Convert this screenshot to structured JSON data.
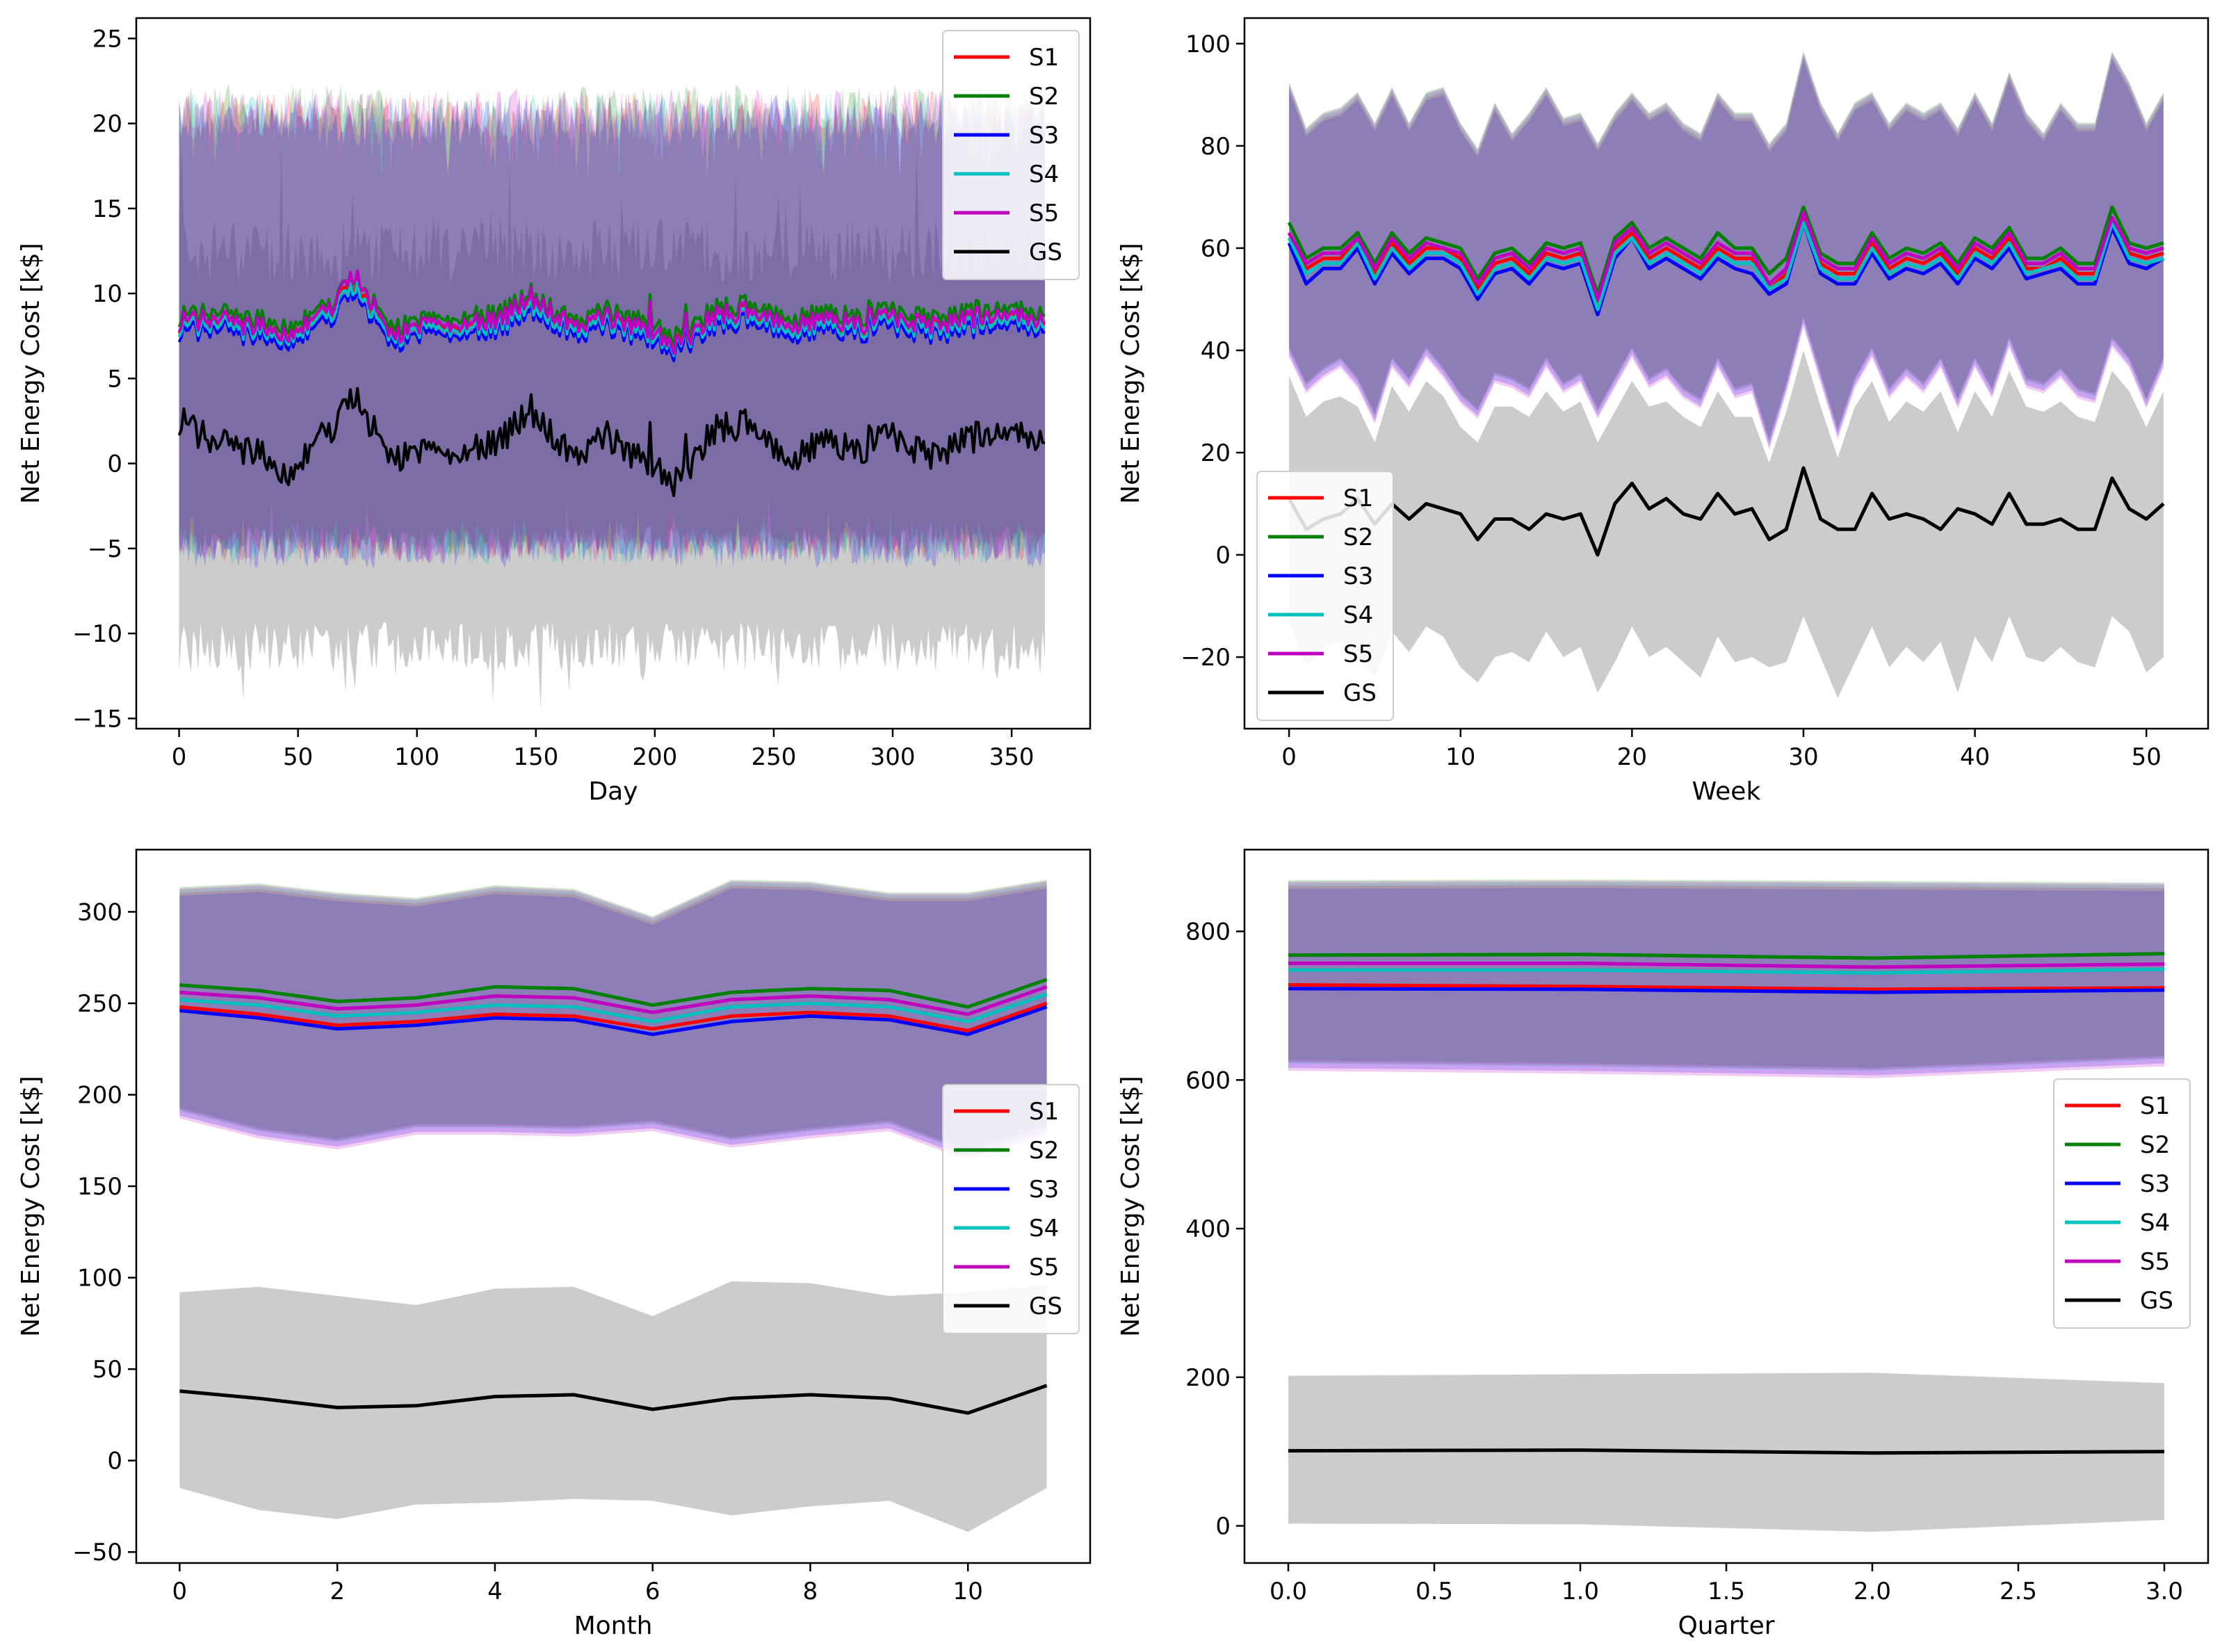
{
  "chart_data": [
    {
      "type": "line",
      "xlabel": "Day",
      "ylabel": "Net Energy Cost [k$]",
      "xlim": [
        -18,
        383
      ],
      "ylim": [
        -15.6,
        26.2
      ],
      "xticks": [
        0,
        50,
        100,
        150,
        200,
        250,
        300,
        350
      ],
      "yticks": [
        -15,
        -10,
        -5,
        0,
        5,
        10,
        15,
        20,
        25
      ],
      "legend": "top-right",
      "bands_summary": "Shaded min–max bands per scenario; S1–S5 roughly -5 to 21, GS roughly -11 to 13",
      "x": [
        0,
        15,
        30,
        45,
        60,
        74,
        90,
        105,
        120,
        135,
        148,
        165,
        180,
        195,
        210,
        225,
        240,
        255,
        270,
        285,
        300,
        315,
        330,
        345,
        364
      ],
      "series": [
        {
          "name": "S1",
          "color": "#ff0000",
          "values": [
            8.2,
            8.4,
            8.0,
            7.8,
            8.6,
            10.5,
            7.6,
            8.3,
            8.1,
            8.4,
            9.6,
            8.0,
            8.5,
            7.9,
            7.0,
            8.6,
            8.9,
            8.0,
            8.3,
            8.1,
            8.6,
            7.9,
            8.4,
            8.7,
            8.2
          ],
          "band": [
            -4.8,
            20.5
          ]
        },
        {
          "name": "S2",
          "color": "#008000",
          "values": [
            8.6,
            8.9,
            8.5,
            8.2,
            9.0,
            10.9,
            8.0,
            8.7,
            8.6,
            8.9,
            10.0,
            8.4,
            9.0,
            8.4,
            7.4,
            9.1,
            9.4,
            8.5,
            8.8,
            8.6,
            9.1,
            8.4,
            8.9,
            9.2,
            8.7
          ],
          "band": [
            -4.6,
            20.8
          ]
        },
        {
          "name": "S3",
          "color": "#0000ff",
          "values": [
            7.7,
            7.9,
            7.5,
            7.2,
            8.1,
            10.0,
            7.0,
            7.8,
            7.6,
            7.9,
            9.1,
            7.5,
            8.0,
            7.4,
            6.5,
            8.1,
            8.4,
            7.5,
            7.8,
            7.6,
            8.1,
            7.4,
            7.9,
            8.2,
            7.7
          ],
          "band": [
            -5.2,
            20.2
          ]
        },
        {
          "name": "S4",
          "color": "#00bfbf",
          "values": [
            8.0,
            8.2,
            7.8,
            7.5,
            8.4,
            10.3,
            7.3,
            8.1,
            7.9,
            8.2,
            9.4,
            7.8,
            8.3,
            7.7,
            6.8,
            8.4,
            8.7,
            7.8,
            8.1,
            7.9,
            8.4,
            7.7,
            8.2,
            8.5,
            8.0
          ],
          "band": [
            -5.0,
            20.4
          ]
        },
        {
          "name": "S5",
          "color": "#bf00bf",
          "values": [
            8.3,
            8.5,
            8.1,
            7.7,
            8.7,
            11.0,
            7.5,
            8.4,
            8.2,
            8.5,
            9.8,
            8.1,
            8.6,
            8.0,
            6.9,
            8.7,
            9.0,
            8.1,
            8.4,
            8.2,
            8.7,
            8.0,
            8.5,
            8.8,
            8.3
          ],
          "band": [
            -4.9,
            20.6
          ]
        },
        {
          "name": "GS",
          "color": "#000000",
          "values": [
            2.5,
            1.2,
            0.8,
            -0.5,
            1.5,
            3.8,
            0.3,
            1.0,
            0.6,
            1.4,
            3.2,
            0.4,
            1.6,
            0.2,
            -1.2,
            2.0,
            2.4,
            0.1,
            1.2,
            0.7,
            1.8,
            0.2,
            1.4,
            1.9,
            1.2
          ],
          "band": [
            -10.8,
            12.5
          ]
        }
      ]
    },
    {
      "type": "line",
      "xlabel": "Week",
      "ylabel": "Net Energy Cost [k$]",
      "xlim": [
        -2.6,
        53.6
      ],
      "ylim": [
        -34,
        105
      ],
      "xticks": [
        0,
        10,
        20,
        30,
        40,
        50
      ],
      "yticks": [
        -20,
        0,
        20,
        40,
        60,
        80,
        100
      ],
      "legend": "bottom-left",
      "x": [
        0,
        1,
        2,
        3,
        4,
        5,
        6,
        7,
        8,
        9,
        10,
        11,
        12,
        13,
        14,
        15,
        16,
        17,
        18,
        19,
        20,
        21,
        22,
        23,
        24,
        25,
        26,
        27,
        28,
        29,
        30,
        31,
        32,
        33,
        34,
        35,
        36,
        37,
        38,
        39,
        40,
        41,
        42,
        43,
        44,
        45,
        46,
        47,
        48,
        49,
        50,
        51
      ],
      "band_upper": [
        92,
        83,
        86,
        87,
        90,
        84,
        91,
        84,
        90,
        91,
        84,
        79,
        88,
        82,
        86,
        91,
        85,
        86,
        80,
        86,
        90,
        86,
        88,
        84,
        82,
        90,
        86,
        86,
        80,
        84,
        98,
        88,
        82,
        88,
        90,
        84,
        88,
        86,
        88,
        83,
        90,
        84,
        94,
        86,
        82,
        88,
        84,
        84,
        98,
        92,
        84,
        90
      ],
      "band_lower": [
        40,
        33,
        36,
        38,
        34,
        27,
        38,
        34,
        40,
        36,
        31,
        28,
        35,
        34,
        32,
        38,
        33,
        35,
        28,
        34,
        40,
        34,
        36,
        32,
        30,
        38,
        32,
        33,
        22,
        33,
        46,
        35,
        24,
        34,
        40,
        32,
        36,
        33,
        38,
        30,
        38,
        32,
        42,
        34,
        33,
        36,
        32,
        31,
        42,
        38,
        30,
        38
      ],
      "gs_band_upper": [
        35,
        27,
        30,
        31,
        29,
        22,
        33,
        28,
        34,
        31,
        25,
        22,
        29,
        29,
        27,
        32,
        28,
        30,
        22,
        28,
        34,
        29,
        30,
        27,
        25,
        32,
        27,
        27,
        18,
        28,
        40,
        29,
        19,
        29,
        34,
        26,
        30,
        28,
        32,
        24,
        32,
        27,
        36,
        29,
        28,
        30,
        27,
        26,
        36,
        32,
        25,
        32
      ],
      "gs_band_lower": [
        -13,
        -22,
        -18,
        -17,
        -19,
        -24,
        -15,
        -19,
        -14,
        -16,
        -22,
        -25,
        -20,
        -19,
        -21,
        -15,
        -20,
        -18,
        -27,
        -21,
        -14,
        -20,
        -18,
        -21,
        -24,
        -16,
        -21,
        -20,
        -22,
        -21,
        -12,
        -20,
        -28,
        -21,
        -14,
        -22,
        -18,
        -21,
        -17,
        -27,
        -16,
        -21,
        -12,
        -20,
        -21,
        -18,
        -21,
        -22,
        -12,
        -15,
        -23,
        -20
      ],
      "series": [
        {
          "name": "S1",
          "color": "#ff0000",
          "values": [
            63,
            56,
            58,
            58,
            62,
            55,
            61,
            57,
            60,
            60,
            58,
            52,
            57,
            58,
            55,
            59,
            58,
            59,
            49,
            60,
            63,
            58,
            60,
            58,
            56,
            60,
            58,
            58,
            52,
            55,
            66,
            57,
            55,
            55,
            61,
            56,
            58,
            57,
            59,
            55,
            60,
            58,
            62,
            56,
            56,
            58,
            55,
            55,
            65,
            59,
            58,
            59
          ]
        },
        {
          "name": "S2",
          "color": "#008000",
          "values": [
            65,
            58,
            60,
            60,
            63,
            57,
            63,
            59,
            62,
            61,
            60,
            54,
            59,
            60,
            57,
            61,
            60,
            61,
            51,
            62,
            65,
            60,
            62,
            60,
            58,
            63,
            60,
            60,
            55,
            58,
            68,
            59,
            57,
            57,
            63,
            58,
            60,
            59,
            61,
            57,
            62,
            60,
            64,
            58,
            58,
            60,
            57,
            57,
            68,
            61,
            60,
            61
          ]
        },
        {
          "name": "S3",
          "color": "#0000ff",
          "values": [
            61,
            53,
            56,
            56,
            60,
            53,
            59,
            55,
            58,
            58,
            56,
            50,
            55,
            56,
            53,
            57,
            56,
            57,
            47,
            58,
            62,
            56,
            58,
            56,
            54,
            58,
            56,
            55,
            51,
            53,
            65,
            55,
            53,
            53,
            59,
            54,
            56,
            55,
            57,
            53,
            58,
            56,
            60,
            54,
            55,
            56,
            53,
            53,
            64,
            57,
            56,
            58
          ]
        },
        {
          "name": "S4",
          "color": "#00bfbf",
          "values": [
            62,
            55,
            57,
            57,
            61,
            54,
            60,
            56,
            59,
            59,
            57,
            51,
            56,
            57,
            54,
            58,
            57,
            58,
            48,
            59,
            62,
            57,
            59,
            57,
            55,
            59,
            57,
            57,
            52,
            54,
            65,
            56,
            54,
            54,
            60,
            55,
            57,
            56,
            58,
            54,
            59,
            57,
            61,
            55,
            56,
            57,
            54,
            54,
            65,
            58,
            57,
            58
          ]
        },
        {
          "name": "S5",
          "color": "#bf00bf",
          "values": [
            63,
            57,
            59,
            59,
            62,
            56,
            62,
            58,
            61,
            60,
            59,
            53,
            58,
            59,
            56,
            60,
            59,
            60,
            50,
            61,
            64,
            59,
            61,
            59,
            57,
            61,
            59,
            59,
            53,
            56,
            67,
            58,
            56,
            56,
            62,
            57,
            59,
            58,
            60,
            56,
            61,
            59,
            63,
            57,
            57,
            59,
            56,
            56,
            66,
            60,
            59,
            60
          ]
        },
        {
          "name": "GS",
          "color": "#000000",
          "values": [
            11,
            5,
            7,
            8,
            11,
            6,
            10,
            7,
            10,
            9,
            8,
            3,
            7,
            7,
            5,
            8,
            7,
            8,
            0,
            10,
            14,
            9,
            11,
            8,
            7,
            12,
            8,
            9,
            3,
            5,
            17,
            7,
            5,
            5,
            12,
            7,
            8,
            7,
            5,
            9,
            8,
            6,
            12,
            6,
            6,
            7,
            5,
            5,
            15,
            9,
            7,
            10
          ]
        }
      ]
    },
    {
      "type": "line",
      "xlabel": "Month",
      "ylabel": "Net Energy Cost [k$]",
      "xlim": [
        -0.55,
        11.55
      ],
      "ylim": [
        -56,
        334
      ],
      "xticks": [
        0,
        2,
        4,
        6,
        8,
        10
      ],
      "yticks": [
        -50,
        0,
        50,
        100,
        150,
        200,
        250,
        300
      ],
      "legend": "center-right",
      "x": [
        0,
        1,
        2,
        3,
        4,
        5,
        6,
        7,
        8,
        9,
        10,
        11
      ],
      "band_upper": [
        312,
        314,
        309,
        306,
        313,
        311,
        296,
        316,
        315,
        309,
        309,
        316
      ],
      "band_lower": [
        191,
        180,
        174,
        182,
        182,
        181,
        184,
        175,
        180,
        184,
        168,
        182
      ],
      "gs_band_upper": [
        92,
        95,
        90,
        85,
        94,
        95,
        79,
        98,
        97,
        90,
        92,
        96
      ],
      "gs_band_lower": [
        -15,
        -27,
        -32,
        -24,
        -23,
        -21,
        -22,
        -30,
        -25,
        -22,
        -39,
        -15
      ],
      "series": [
        {
          "name": "S1",
          "color": "#ff0000",
          "values": [
            248,
            244,
            238,
            240,
            244,
            243,
            236,
            243,
            245,
            243,
            235,
            250
          ]
        },
        {
          "name": "S2",
          "color": "#008000",
          "values": [
            260,
            257,
            251,
            253,
            259,
            258,
            249,
            256,
            258,
            257,
            248,
            263
          ]
        },
        {
          "name": "S3",
          "color": "#0000ff",
          "values": [
            246,
            242,
            236,
            238,
            242,
            241,
            233,
            240,
            243,
            241,
            233,
            248
          ]
        },
        {
          "name": "S4",
          "color": "#00bfbf",
          "values": [
            252,
            249,
            243,
            245,
            249,
            248,
            240,
            248,
            250,
            248,
            240,
            255
          ]
        },
        {
          "name": "S5",
          "color": "#bf00bf",
          "values": [
            256,
            253,
            247,
            249,
            254,
            253,
            245,
            252,
            254,
            252,
            244,
            259
          ]
        },
        {
          "name": "GS",
          "color": "#000000",
          "values": [
            38,
            34,
            29,
            30,
            35,
            36,
            28,
            34,
            36,
            34,
            26,
            41
          ]
        }
      ]
    },
    {
      "type": "line",
      "xlabel": "Quarter",
      "ylabel": "Net Energy Cost [k$]",
      "xlim": [
        -0.15,
        3.15
      ],
      "ylim": [
        -50,
        910
      ],
      "xticks": [
        0.0,
        0.5,
        1.0,
        1.5,
        2.0,
        2.5,
        3.0
      ],
      "xtick_labels": [
        "0.0",
        "0.5",
        "1.0",
        "1.5",
        "2.0",
        "2.5",
        "3.0"
      ],
      "yticks": [
        0,
        200,
        400,
        600,
        800
      ],
      "legend": "center-right",
      "x": [
        0,
        1,
        2,
        3
      ],
      "band_upper": [
        865,
        866,
        864,
        862
      ],
      "band_lower": [
        622,
        618,
        612,
        628
      ],
      "gs_band_upper": [
        202,
        204,
        206,
        192
      ],
      "gs_band_lower": [
        3,
        2,
        -8,
        8
      ],
      "series": [
        {
          "name": "S1",
          "color": "#ff0000",
          "values": [
            728,
            726,
            722,
            724
          ]
        },
        {
          "name": "S2",
          "color": "#008000",
          "values": [
            768,
            769,
            764,
            770
          ]
        },
        {
          "name": "S3",
          "color": "#0000ff",
          "values": [
            723,
            722,
            718,
            721
          ]
        },
        {
          "name": "S4",
          "color": "#00bfbf",
          "values": [
            748,
            748,
            744,
            749
          ]
        },
        {
          "name": "S5",
          "color": "#bf00bf",
          "values": [
            757,
            757,
            752,
            756
          ]
        },
        {
          "name": "GS",
          "color": "#000000",
          "values": [
            101,
            102,
            98,
            100
          ]
        }
      ]
    }
  ]
}
